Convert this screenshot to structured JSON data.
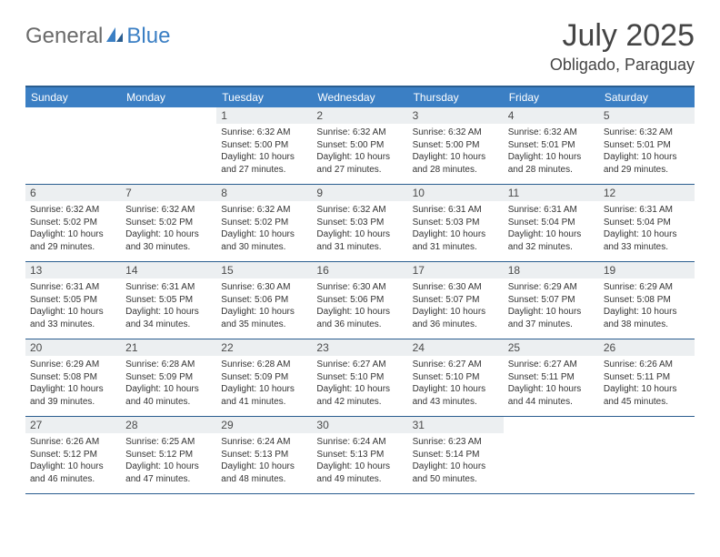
{
  "brand": {
    "part1": "General",
    "part2": "Blue"
  },
  "title": "July 2025",
  "location": "Obligado, Paraguay",
  "colors": {
    "header_bg": "#3b7fc4",
    "border": "#2a5d8f",
    "daynum_bg": "#eceff1",
    "text": "#333333",
    "brand_grey": "#6a6a6a",
    "brand_blue": "#3b7fc4"
  },
  "weekdays": [
    "Sunday",
    "Monday",
    "Tuesday",
    "Wednesday",
    "Thursday",
    "Friday",
    "Saturday"
  ],
  "weeks": [
    [
      null,
      null,
      {
        "n": "1",
        "sr": "6:32 AM",
        "ss": "5:00 PM",
        "dl": "10 hours and 27 minutes."
      },
      {
        "n": "2",
        "sr": "6:32 AM",
        "ss": "5:00 PM",
        "dl": "10 hours and 27 minutes."
      },
      {
        "n": "3",
        "sr": "6:32 AM",
        "ss": "5:00 PM",
        "dl": "10 hours and 28 minutes."
      },
      {
        "n": "4",
        "sr": "6:32 AM",
        "ss": "5:01 PM",
        "dl": "10 hours and 28 minutes."
      },
      {
        "n": "5",
        "sr": "6:32 AM",
        "ss": "5:01 PM",
        "dl": "10 hours and 29 minutes."
      }
    ],
    [
      {
        "n": "6",
        "sr": "6:32 AM",
        "ss": "5:02 PM",
        "dl": "10 hours and 29 minutes."
      },
      {
        "n": "7",
        "sr": "6:32 AM",
        "ss": "5:02 PM",
        "dl": "10 hours and 30 minutes."
      },
      {
        "n": "8",
        "sr": "6:32 AM",
        "ss": "5:02 PM",
        "dl": "10 hours and 30 minutes."
      },
      {
        "n": "9",
        "sr": "6:32 AM",
        "ss": "5:03 PM",
        "dl": "10 hours and 31 minutes."
      },
      {
        "n": "10",
        "sr": "6:31 AM",
        "ss": "5:03 PM",
        "dl": "10 hours and 31 minutes."
      },
      {
        "n": "11",
        "sr": "6:31 AM",
        "ss": "5:04 PM",
        "dl": "10 hours and 32 minutes."
      },
      {
        "n": "12",
        "sr": "6:31 AM",
        "ss": "5:04 PM",
        "dl": "10 hours and 33 minutes."
      }
    ],
    [
      {
        "n": "13",
        "sr": "6:31 AM",
        "ss": "5:05 PM",
        "dl": "10 hours and 33 minutes."
      },
      {
        "n": "14",
        "sr": "6:31 AM",
        "ss": "5:05 PM",
        "dl": "10 hours and 34 minutes."
      },
      {
        "n": "15",
        "sr": "6:30 AM",
        "ss": "5:06 PM",
        "dl": "10 hours and 35 minutes."
      },
      {
        "n": "16",
        "sr": "6:30 AM",
        "ss": "5:06 PM",
        "dl": "10 hours and 36 minutes."
      },
      {
        "n": "17",
        "sr": "6:30 AM",
        "ss": "5:07 PM",
        "dl": "10 hours and 36 minutes."
      },
      {
        "n": "18",
        "sr": "6:29 AM",
        "ss": "5:07 PM",
        "dl": "10 hours and 37 minutes."
      },
      {
        "n": "19",
        "sr": "6:29 AM",
        "ss": "5:08 PM",
        "dl": "10 hours and 38 minutes."
      }
    ],
    [
      {
        "n": "20",
        "sr": "6:29 AM",
        "ss": "5:08 PM",
        "dl": "10 hours and 39 minutes."
      },
      {
        "n": "21",
        "sr": "6:28 AM",
        "ss": "5:09 PM",
        "dl": "10 hours and 40 minutes."
      },
      {
        "n": "22",
        "sr": "6:28 AM",
        "ss": "5:09 PM",
        "dl": "10 hours and 41 minutes."
      },
      {
        "n": "23",
        "sr": "6:27 AM",
        "ss": "5:10 PM",
        "dl": "10 hours and 42 minutes."
      },
      {
        "n": "24",
        "sr": "6:27 AM",
        "ss": "5:10 PM",
        "dl": "10 hours and 43 minutes."
      },
      {
        "n": "25",
        "sr": "6:27 AM",
        "ss": "5:11 PM",
        "dl": "10 hours and 44 minutes."
      },
      {
        "n": "26",
        "sr": "6:26 AM",
        "ss": "5:11 PM",
        "dl": "10 hours and 45 minutes."
      }
    ],
    [
      {
        "n": "27",
        "sr": "6:26 AM",
        "ss": "5:12 PM",
        "dl": "10 hours and 46 minutes."
      },
      {
        "n": "28",
        "sr": "6:25 AM",
        "ss": "5:12 PM",
        "dl": "10 hours and 47 minutes."
      },
      {
        "n": "29",
        "sr": "6:24 AM",
        "ss": "5:13 PM",
        "dl": "10 hours and 48 minutes."
      },
      {
        "n": "30",
        "sr": "6:24 AM",
        "ss": "5:13 PM",
        "dl": "10 hours and 49 minutes."
      },
      {
        "n": "31",
        "sr": "6:23 AM",
        "ss": "5:14 PM",
        "dl": "10 hours and 50 minutes."
      },
      null,
      null
    ]
  ],
  "labels": {
    "sunrise": "Sunrise:",
    "sunset": "Sunset:",
    "daylight": "Daylight:"
  }
}
